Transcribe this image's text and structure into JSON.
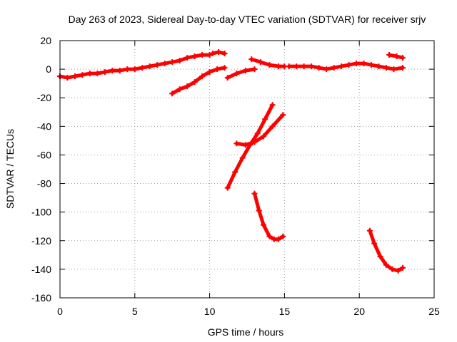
{
  "chart_data": {
    "type": "scatter",
    "title": "Day 263 of 2023, Sidereal Day-to-day VTEC variation (SDTVAR) for receiver srjv",
    "xlabel": "GPS time / hours",
    "ylabel": "SDTVAR / TECUs",
    "xlim": [
      0,
      25
    ],
    "ylim": [
      -160,
      20
    ],
    "xticks": [
      "0",
      "5",
      "10",
      "15",
      "20",
      "25"
    ],
    "yticks": [
      "20",
      "0",
      "-20",
      "-40",
      "-60",
      "-80",
      "-100",
      "-120",
      "-140",
      "-160"
    ],
    "grid": true,
    "legend": "none",
    "marker": "plus",
    "color": "#ff0000",
    "series": [
      {
        "x": [
          0.0,
          0.5,
          1.0,
          1.5,
          2.0,
          2.5,
          3.0,
          3.5,
          4.0,
          4.5,
          5.0,
          5.5,
          6.0,
          6.5,
          7.0,
          7.5,
          8.0,
          8.5,
          9.0,
          9.5,
          10.0
        ],
        "y": [
          -5,
          -6,
          -5,
          -4,
          -3,
          -3,
          -2,
          -1,
          -1,
          0,
          0,
          1,
          2,
          3,
          4,
          5,
          6,
          8,
          9,
          10,
          10
        ]
      },
      {
        "x": [
          10.2,
          10.6,
          11.0
        ],
        "y": [
          11,
          12,
          11
        ]
      },
      {
        "x": [
          7.5,
          8.0,
          8.5,
          9.0,
          9.5,
          10.0,
          10.5,
          11.0
        ],
        "y": [
          -17,
          -14,
          -12,
          -9,
          -5,
          -2,
          0,
          1
        ]
      },
      {
        "x": [
          11.2,
          11.8,
          12.4,
          13.0
        ],
        "y": [
          -6,
          -3,
          -1,
          0
        ]
      },
      {
        "x": [
          12.8,
          13.4,
          14.0,
          14.6,
          15.0
        ],
        "y": [
          7,
          5,
          3,
          2,
          2
        ]
      },
      {
        "x": [
          15.3,
          15.8,
          16.3,
          16.8,
          17.3,
          17.8,
          18.3,
          18.8,
          19.3,
          19.8,
          20.3,
          20.8,
          21.3,
          21.8,
          22.3,
          22.9
        ],
        "y": [
          2,
          2,
          2,
          2,
          1,
          0,
          1,
          2,
          3,
          4,
          4,
          3,
          2,
          1,
          0,
          1
        ]
      },
      {
        "x": [
          22.0,
          22.5,
          22.9
        ],
        "y": [
          10,
          9,
          8
        ]
      },
      {
        "x": [
          11.2,
          11.7,
          12.2,
          12.7,
          13.2,
          13.7,
          14.2
        ],
        "y": [
          -83,
          -72,
          -62,
          -53,
          -45,
          -35,
          -25
        ]
      },
      {
        "x": [
          11.8,
          12.4,
          13.0,
          13.6,
          14.2,
          14.9
        ],
        "y": [
          -52,
          -53,
          -51,
          -47,
          -40,
          -32
        ]
      },
      {
        "x": [
          13.0,
          13.3,
          13.6,
          14.0,
          14.3,
          14.6,
          14.9
        ],
        "y": [
          -87,
          -99,
          -109,
          -117,
          -119,
          -119,
          -117
        ]
      },
      {
        "x": [
          20.7,
          21.0,
          21.4,
          21.8,
          22.2,
          22.6,
          22.9
        ],
        "y": [
          -113,
          -122,
          -131,
          -137,
          -140,
          -141,
          -139
        ]
      }
    ]
  }
}
